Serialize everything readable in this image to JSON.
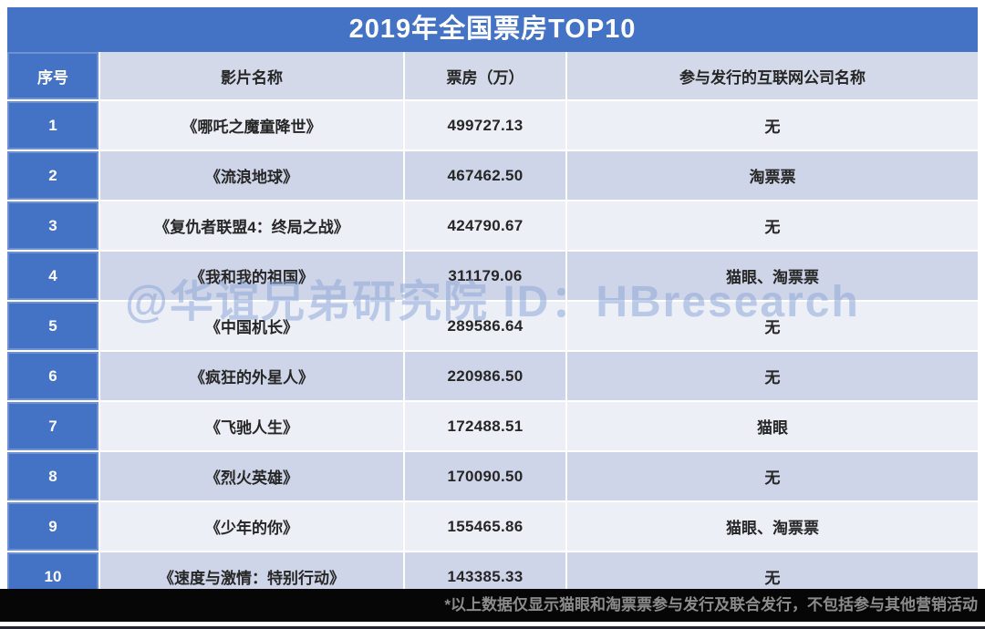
{
  "title": "2019年全国票房TOP10",
  "watermark": "@华谊兄弟研究院 ID：HBresearch",
  "footnote": "*以上数据仅显示猫眼和淘票票参与发行及联合发行，不包括参与其他营销活动",
  "colors": {
    "header_blue": "#4472C4",
    "header_lavender": "#D4D9E9",
    "row_light": "#ECEFF6",
    "row_dark": "#CFD5E8",
    "footer_bar": "#060606",
    "footnote_gray": "#8C8C8C",
    "watermark_blue": "#8FA9D9"
  },
  "table": {
    "columns": [
      "序号",
      "影片名称",
      "票房（万）",
      "参与发行的互联网公司名称"
    ],
    "rows": [
      {
        "rank": "1",
        "name": "《哪吒之魔童降世》",
        "box_office": "499727.13",
        "companies": "无"
      },
      {
        "rank": "2",
        "name": "《流浪地球》",
        "box_office": "467462.50",
        "companies": "淘票票"
      },
      {
        "rank": "3",
        "name": "《复仇者联盟4：终局之战》",
        "box_office": "424790.67",
        "companies": "无"
      },
      {
        "rank": "4",
        "name": "《我和我的祖国》",
        "box_office": "311179.06",
        "companies": "猫眼、淘票票"
      },
      {
        "rank": "5",
        "name": "《中国机长》",
        "box_office": "289586.64",
        "companies": "无"
      },
      {
        "rank": "6",
        "name": "《疯狂的外星人》",
        "box_office": "220986.50",
        "companies": "无"
      },
      {
        "rank": "7",
        "name": "《飞驰人生》",
        "box_office": "172488.51",
        "companies": "猫眼"
      },
      {
        "rank": "8",
        "name": "《烈火英雄》",
        "box_office": "170090.50",
        "companies": "无"
      },
      {
        "rank": "9",
        "name": "《少年的你》",
        "box_office": "155465.86",
        "companies": "猫眼、淘票票"
      },
      {
        "rank": "10",
        "name": "《速度与激情：特别行动》",
        "box_office": "143385.33",
        "companies": "无"
      }
    ]
  },
  "chart_data": {
    "type": "table",
    "title": "2019年全国票房TOP10",
    "columns": [
      "序号",
      "影片名称",
      "票房（万）",
      "参与发行的互联网公司名称"
    ],
    "rows": [
      [
        "1",
        "《哪吒之魔童降世》",
        499727.13,
        "无"
      ],
      [
        "2",
        "《流浪地球》",
        467462.5,
        "淘票票"
      ],
      [
        "3",
        "《复仇者联盟4：终局之战》",
        424790.67,
        "无"
      ],
      [
        "4",
        "《我和我的祖国》",
        311179.06,
        "猫眼、淘票票"
      ],
      [
        "5",
        "《中国机长》",
        289586.64,
        "无"
      ],
      [
        "6",
        "《疯狂的外星人》",
        220986.5,
        "无"
      ],
      [
        "7",
        "《飞驰人生》",
        172488.51,
        "猫眼"
      ],
      [
        "8",
        "《烈火英雄》",
        170090.5,
        "无"
      ],
      [
        "9",
        "《少年的你》",
        155465.86,
        "猫眼、淘票票"
      ],
      [
        "10",
        "《速度与激情：特别行动》",
        143385.33,
        "无"
      ]
    ],
    "footnote": "*以上数据仅显示猫眼和淘票票参与发行及联合发行，不包括参与其他营销活动",
    "source_watermark": "@华谊兄弟研究院 ID：HBresearch"
  }
}
